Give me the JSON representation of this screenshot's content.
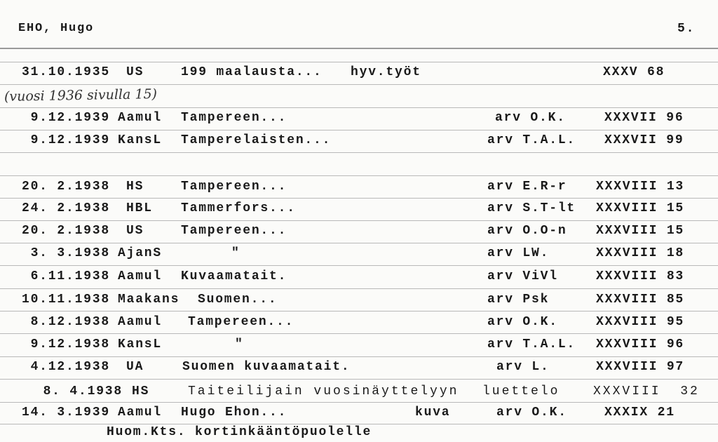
{
  "card": {
    "name": "EHO, Hugo",
    "page_number": "5.",
    "handwritten_note": "(vuosi 1936 sivulla 15)",
    "footer_note": "Huom.Kts. kortinkääntöpuolelle",
    "entries": [
      {
        "date": "31.10.1935",
        "source": "US",
        "title": "199 maalausta...",
        "note": "hyv.työt",
        "reviewer": "",
        "ref": "XXXV 68"
      },
      {
        "date": "9.12.1939",
        "source": "Aamul",
        "title": "Tampereen...",
        "note": "",
        "reviewer": "arv O.K.",
        "ref": "XXXVII 96"
      },
      {
        "date": "9.12.1939",
        "source": "KansL",
        "title": "Tamperelaisten...",
        "note": "",
        "reviewer": "arv T.A.L.",
        "ref": "XXXVII 99"
      },
      {
        "date": "20. 2.1938",
        "source": "HS",
        "title": "Tampereen...",
        "note": "",
        "reviewer": "arv E.R-r",
        "ref": "XXXVIII 13"
      },
      {
        "date": "24. 2.1938",
        "source": "HBL",
        "title": "Tammerfors...",
        "note": "",
        "reviewer": "arv S.T-lt",
        "ref": "XXXVIII 15"
      },
      {
        "date": "20. 2.1938",
        "source": "US",
        "title": "Tampereen...",
        "note": "",
        "reviewer": "arv O.O-n",
        "ref": "XXXVIII 15"
      },
      {
        "date": "3. 3.1938",
        "source": "AjanS",
        "title": "\"",
        "note": "",
        "reviewer": "arv LW.",
        "ref": "XXXVIII 18"
      },
      {
        "date": "6.11.1938",
        "source": "Aamul",
        "title": "Kuvaamatait.",
        "note": "",
        "reviewer": "arv ViVl",
        "ref": "XXXVIII 83"
      },
      {
        "date": "10.11.1938",
        "source": "Maakans",
        "title": "Suomen...",
        "note": "",
        "reviewer": "arv Psk",
        "ref": "XXXVIII 85"
      },
      {
        "date": "8.12.1938",
        "source": "Aamul",
        "title": "Tampereen...",
        "note": "",
        "reviewer": "arv O.K.",
        "ref": "XXXVIII 95"
      },
      {
        "date": "9.12.1938",
        "source": "KansL",
        "title": "\"",
        "note": "",
        "reviewer": "arv T.A.L.",
        "ref": "XXXVIII 96"
      },
      {
        "date": "4.12.1938",
        "source": "UA",
        "title": "Suomen kuvaamatait.",
        "note": "",
        "reviewer": "arv L.",
        "ref": "XXXVIII 97"
      },
      {
        "date": "8. 4.1938",
        "source": "HS",
        "title": "Taiteilijain vuosinäyttelyyn",
        "note": "",
        "reviewer": "luettelo",
        "ref": "XXXVIII  32"
      },
      {
        "date": "14. 3.1939",
        "source": "Aamul",
        "title": "Hugo Ehon...",
        "note": "kuva",
        "reviewer": "arv O.K.",
        "ref": "XXXIX 21"
      }
    ]
  }
}
